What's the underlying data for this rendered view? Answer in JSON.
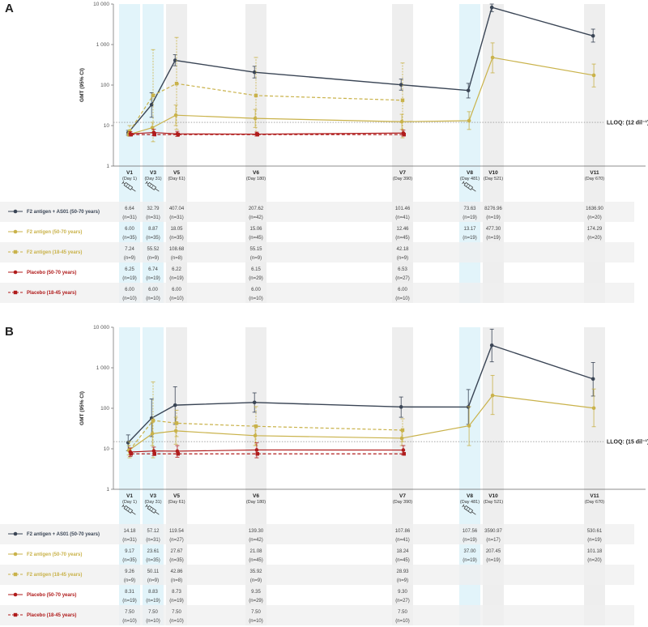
{
  "colors": {
    "dark": "#3a4555",
    "gold": "#c9b24a",
    "red": "#b01c1c",
    "vaccination_band": "#e2f4fa",
    "visit_band": "#eeeeee",
    "table_band": "#efefef",
    "lloq_line": "#999999"
  },
  "chart_data": [
    {
      "type": "line",
      "panel": "A",
      "ylabel": "GMT (95% CI)",
      "yscale": "log",
      "ylim": [
        1,
        10000
      ],
      "y_tick_labels": [
        "1",
        "10",
        "100",
        "1 000",
        "10 000"
      ],
      "lloq": {
        "value": 12,
        "label": "LLOQ: (12 dil⁻¹)"
      },
      "categories": [
        "V1",
        "V3",
        "V5",
        "V6",
        "V7",
        "V8",
        "V10",
        "V11"
      ],
      "category_days": [
        "(Day 1)",
        "(Day 31)",
        "(Day 61)",
        "(Day 180)",
        "(Day 390)",
        "(Day 481)",
        "(Day 521)",
        "(Day 670)"
      ],
      "days": [
        1,
        31,
        61,
        180,
        390,
        481,
        521,
        670
      ],
      "vaccination_visits": [
        "V1",
        "V3",
        "V8"
      ],
      "series": [
        {
          "name": "F2 antigen + AS01 (50-70 years)",
          "style": "dark-solid",
          "values": [
            6.64,
            32.79,
            407.04,
            207.62,
            101.46,
            73.63,
            8276.96,
            1636.9
          ],
          "labels": [
            "6.64",
            "32.79",
            "407.04",
            "207.62",
            "101.46",
            "73.63",
            "8276.96",
            "1636.90"
          ],
          "n": [
            "(n=31)",
            "(n=31)",
            "(n=31)",
            "(n=42)",
            "(n=41)",
            "(n=19)",
            "(n=19)",
            "(n=20)"
          ],
          "ci": [
            [
              5.8,
              7.6
            ],
            [
              16,
              65
            ],
            [
              300,
              560
            ],
            [
              150,
              290
            ],
            [
              75,
              140
            ],
            [
              48,
              110
            ],
            [
              6500,
              10000
            ],
            [
              1150,
              2400
            ]
          ]
        },
        {
          "name": "F2 antigen (50-70 years)",
          "style": "gold-solid",
          "values": [
            6.0,
            8.87,
            18.05,
            15.06,
            12.46,
            13.17,
            477.3,
            174.29
          ],
          "labels": [
            "6.00",
            "8.87",
            "18.05",
            "15.06",
            "12.46",
            "13.17",
            "477.30",
            "174.29"
          ],
          "n": [
            "(n=35)",
            "(n=35)",
            "(n=35)",
            "(n=45)",
            "(n=45)",
            "(n=19)",
            "(n=19)",
            "(n=20)"
          ],
          "ci": [
            [
              5.5,
              6.6
            ],
            [
              6.5,
              12
            ],
            [
              10,
              32
            ],
            [
              9,
              25
            ],
            [
              8,
              19
            ],
            [
              8,
              22
            ],
            [
              200,
              1100
            ],
            [
              90,
              330
            ]
          ]
        },
        {
          "name": "F2 antigen  (18-45 years)",
          "style": "gold-dashed",
          "values": [
            7.24,
            55.52,
            108.68,
            55.15,
            42.18,
            null,
            null,
            null
          ],
          "labels": [
            "7.24",
            "55.52",
            "108.68",
            "55.15",
            "42.18",
            "",
            "",
            ""
          ],
          "n": [
            "(n=9)",
            "(n=9)",
            "(n=8)",
            "(n=9)",
            "(n=9)",
            "",
            "",
            ""
          ],
          "ci": [
            [
              5.5,
              10
            ],
            [
              4,
              750
            ],
            [
              8,
              1500
            ],
            [
              6,
              480
            ],
            [
              5,
              350
            ],
            null,
            null,
            null
          ]
        },
        {
          "name": "Placebo (50-70 years)",
          "style": "red-solid",
          "values": [
            6.25,
            6.74,
            6.22,
            6.15,
            6.53,
            null,
            null,
            null
          ],
          "labels": [
            "6.25",
            "6.74",
            "6.22",
            "6.15",
            "6.53",
            "",
            "",
            ""
          ],
          "n": [
            "(n=19)",
            "(n=19)",
            "(n=19)",
            "(n=29)",
            "(n=27)",
            "",
            "",
            ""
          ],
          "ci": [
            [
              5.5,
              7.1
            ],
            [
              5.6,
              8.1
            ],
            [
              5.4,
              7.2
            ],
            [
              5.5,
              6.9
            ],
            [
              5.5,
              7.7
            ],
            null,
            null,
            null
          ]
        },
        {
          "name": "Placebo (18-45 years)",
          "style": "red-dashed",
          "values": [
            6.0,
            6.0,
            6.0,
            6.0,
            6.0,
            null,
            null,
            null
          ],
          "labels": [
            "6.00",
            "6.00",
            "6.00",
            "6.00",
            "6.00",
            "",
            "",
            ""
          ],
          "n": [
            "(n=10)",
            "(n=10)",
            "(n=10)",
            "(n=10)",
            "(n=10)",
            "",
            "",
            ""
          ],
          "ci": [
            null,
            null,
            null,
            null,
            null,
            null,
            null,
            null
          ]
        }
      ]
    },
    {
      "type": "line",
      "panel": "B",
      "ylabel": "GMT (95% CI)",
      "yscale": "log",
      "ylim": [
        1,
        10000
      ],
      "y_tick_labels": [
        "1",
        "10",
        "100",
        "1 000",
        "10 000"
      ],
      "lloq": {
        "value": 15,
        "label": "LLOQ: (15 dil⁻¹)"
      },
      "categories": [
        "V1",
        "V3",
        "V5",
        "V6",
        "V7",
        "V8",
        "V10",
        "V11"
      ],
      "category_days": [
        "(Day 1)",
        "(Day 31)",
        "(Day 61)",
        "(Day 180)",
        "(Day 390)",
        "(Day 481)",
        "(Day 521)",
        "(Day 670)"
      ],
      "days": [
        1,
        31,
        61,
        180,
        390,
        481,
        521,
        670
      ],
      "vaccination_visits": [
        "V1",
        "V3",
        "V8"
      ],
      "series": [
        {
          "name": "F2 antigen + AS01 (50-70 years)",
          "style": "dark-solid",
          "values": [
            14.18,
            57.12,
            119.54,
            139.3,
            107.86,
            107.56,
            3590.97,
            530.61
          ],
          "labels": [
            "14.18",
            "57.12",
            "119.54",
            "139.30",
            "107.86",
            "107.56",
            "3590.97",
            "530.61"
          ],
          "n": [
            "(n=31)",
            "(n=31)",
            "(n=27)",
            "(n=42)",
            "(n=41)",
            "(n=19)",
            "(n=17)",
            "(n=19)"
          ],
          "ci": [
            [
              9,
              22
            ],
            [
              20,
              170
            ],
            [
              40,
              340
            ],
            [
              80,
              240
            ],
            [
              60,
              190
            ],
            [
              40,
              290
            ],
            [
              1400,
              9000
            ],
            [
              200,
              1350
            ]
          ]
        },
        {
          "name": "F2 antigen (50-70 years)",
          "style": "gold-solid",
          "values": [
            9.17,
            23.61,
            27.67,
            21.08,
            18.24,
            37.0,
            207.45,
            101.18
          ],
          "labels": [
            "9.17",
            "23.61",
            "27.67",
            "21.08",
            "18.24",
            "37.00",
            "207.45",
            "101.18"
          ],
          "n": [
            "(n=35)",
            "(n=35)",
            "(n=35)",
            "(n=45)",
            "(n=45)",
            "(n=19)",
            "(n=19)",
            "(n=20)"
          ],
          "ci": [
            [
              7,
              12
            ],
            [
              12,
              45
            ],
            [
              13,
              60
            ],
            [
              12,
              38
            ],
            [
              12,
              28
            ],
            [
              12,
              110
            ],
            [
              70,
              650
            ],
            [
              35,
              300
            ]
          ]
        },
        {
          "name": "F2 antigen  (18-45 years)",
          "style": "gold-dashed",
          "values": [
            9.26,
            50.11,
            42.86,
            35.92,
            28.93,
            null,
            null,
            null
          ],
          "labels": [
            "9.26",
            "50.11",
            "42.86",
            "35.92",
            "28.93",
            "",
            "",
            ""
          ],
          "n": [
            "(n=9)",
            "(n=9)",
            "(n=8)",
            "(n=9)",
            "(n=9)",
            "",
            "",
            ""
          ],
          "ci": [
            [
              6,
              15
            ],
            [
              6,
              450
            ],
            [
              20,
              90
            ],
            [
              12,
              110
            ],
            [
              15,
              55
            ],
            null,
            null,
            null
          ]
        },
        {
          "name": "Placebo (50-70 years)",
          "style": "red-solid",
          "values": [
            8.31,
            8.83,
            8.73,
            9.35,
            9.3,
            null,
            null,
            null
          ],
          "labels": [
            "8.31",
            "8.83",
            "8.73",
            "9.35",
            "9.30",
            "",
            "",
            ""
          ],
          "n": [
            "(n=19)",
            "(n=19)",
            "(n=19)",
            "(n=29)",
            "(n=27)",
            "",
            "",
            ""
          ],
          "ci": [
            [
              6.5,
              10.5
            ],
            [
              6.8,
              11
            ],
            [
              6.2,
              12
            ],
            [
              6,
              14
            ],
            [
              7,
              12
            ],
            null,
            null,
            null
          ]
        },
        {
          "name": "Placebo (18-45 years)",
          "style": "red-dashed",
          "values": [
            7.5,
            7.5,
            7.5,
            7.5,
            7.5,
            null,
            null,
            null
          ],
          "labels": [
            "7.50",
            "7.50",
            "7.50",
            "7.50",
            "7.50",
            "",
            "",
            ""
          ],
          "n": [
            "(n=10)",
            "(n=10)",
            "(n=10)",
            "(n=10)",
            "(n=10)",
            "",
            "",
            ""
          ],
          "ci": [
            null,
            null,
            null,
            null,
            null,
            null,
            null,
            null
          ]
        }
      ]
    }
  ]
}
